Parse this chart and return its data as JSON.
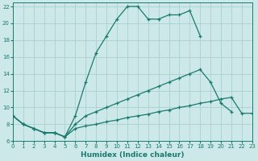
{
  "xlabel": "Humidex (Indice chaleur)",
  "background_color": "#cde8e8",
  "grid_color": "#aacfcf",
  "line_color": "#1a7a6e",
  "ylim": [
    6,
    22.5
  ],
  "xlim": [
    0,
    23
  ],
  "yticks": [
    6,
    8,
    10,
    12,
    14,
    16,
    18,
    20,
    22
  ],
  "xticks": [
    0,
    1,
    2,
    3,
    4,
    5,
    6,
    7,
    8,
    9,
    10,
    11,
    12,
    13,
    14,
    15,
    16,
    17,
    18,
    19,
    20,
    21,
    22,
    23
  ],
  "series": [
    {
      "x": [
        0,
        1,
        2,
        3,
        4,
        5,
        6,
        7,
        8,
        9,
        10,
        11,
        12,
        13,
        14,
        15,
        16,
        17,
        18
      ],
      "y": [
        9,
        8,
        7.5,
        7,
        7,
        6.5,
        9,
        13,
        16.5,
        18.5,
        20.5,
        22,
        22,
        20.5,
        20.5,
        21,
        21,
        21.5,
        18.5
      ]
    },
    {
      "x": [
        0,
        1,
        2,
        3,
        4,
        5,
        6,
        7,
        8,
        9,
        10,
        11,
        12,
        13,
        14,
        15,
        16,
        17,
        18,
        19,
        20,
        21
      ],
      "y": [
        9,
        8,
        7.5,
        7,
        7,
        6.5,
        8,
        9,
        9.5,
        10,
        10.5,
        11,
        11.5,
        12,
        12.5,
        13,
        13.5,
        14,
        14.5,
        13,
        10.5,
        9.5
      ]
    },
    {
      "x": [
        0,
        1,
        2,
        3,
        4,
        5,
        6,
        7,
        8,
        9,
        10,
        11,
        12,
        13,
        14,
        15,
        16,
        17,
        18,
        19,
        20,
        21,
        22,
        23
      ],
      "y": [
        9,
        8,
        7.5,
        7,
        7,
        6.5,
        7.5,
        7.8,
        8.0,
        8.3,
        8.5,
        8.8,
        9.0,
        9.2,
        9.5,
        9.7,
        10.0,
        10.2,
        10.5,
        10.7,
        11.0,
        11.2,
        9.3,
        9.3
      ]
    }
  ]
}
